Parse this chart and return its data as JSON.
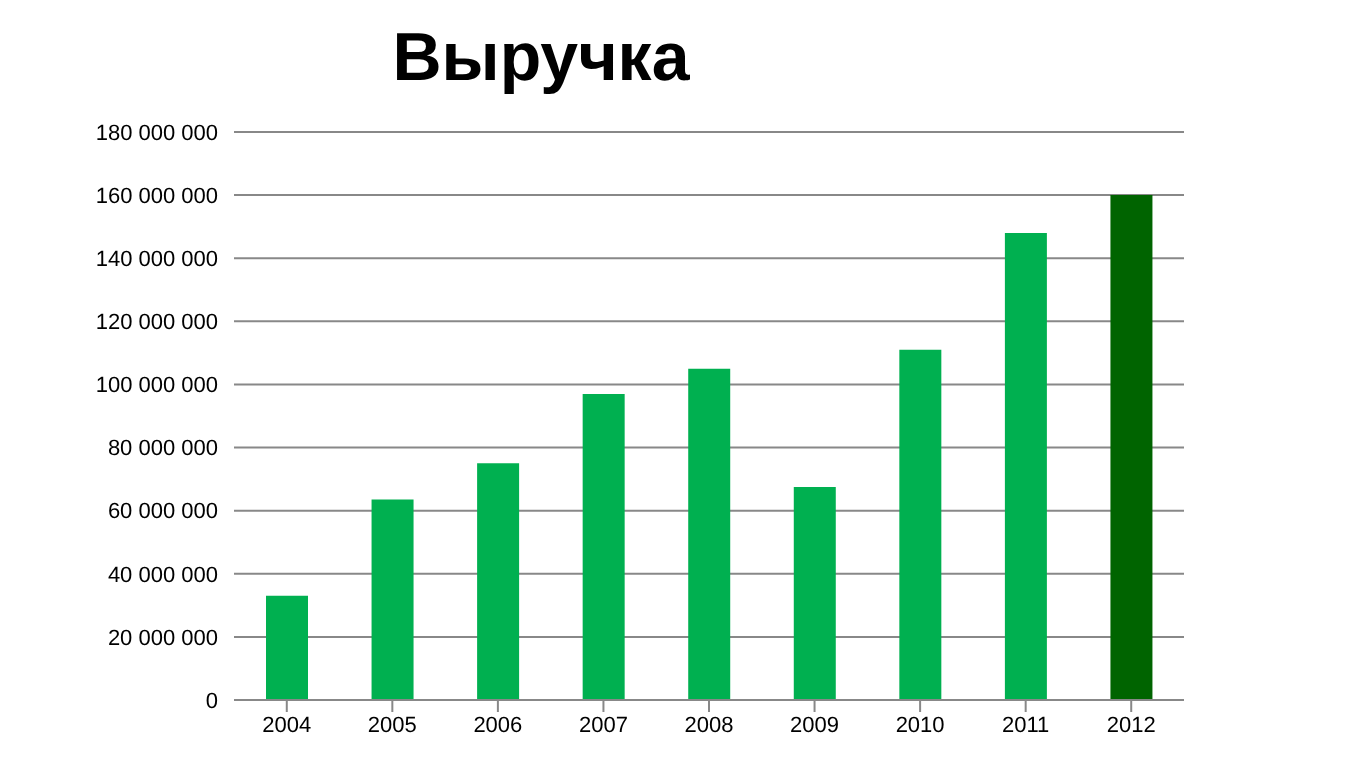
{
  "chart_data": {
    "type": "bar",
    "title": "Выручка",
    "categories": [
      "2004",
      "2005",
      "2006",
      "2007",
      "2008",
      "2009",
      "2010",
      "2011",
      "2012"
    ],
    "values": [
      33000000,
      63500000,
      75000000,
      97000000,
      105000000,
      67500000,
      111000000,
      148000000,
      160000000
    ],
    "colors": [
      "#00b050",
      "#00b050",
      "#00b050",
      "#00b050",
      "#00b050",
      "#00b050",
      "#00b050",
      "#00b050",
      "#006400"
    ],
    "ylim": [
      0,
      180000000
    ],
    "yticks": [
      0,
      {
        "value": 20000000,
        "label": "20 000 000"
      },
      {
        "value": 40000000,
        "label": "40 000 000"
      },
      {
        "value": 60000000,
        "label": "60 000 000"
      },
      {
        "value": 80000000,
        "label": "80 000 000"
      },
      {
        "value": 100000000,
        "label": "100 000 000"
      },
      {
        "value": 120000000,
        "label": "120 000 000"
      },
      {
        "value": 140000000,
        "label": "140 000 000"
      },
      {
        "value": 160000000,
        "label": "160 000 000"
      },
      {
        "value": 180000000,
        "label": "180 000 000"
      }
    ],
    "grid": "y",
    "legend": false
  }
}
